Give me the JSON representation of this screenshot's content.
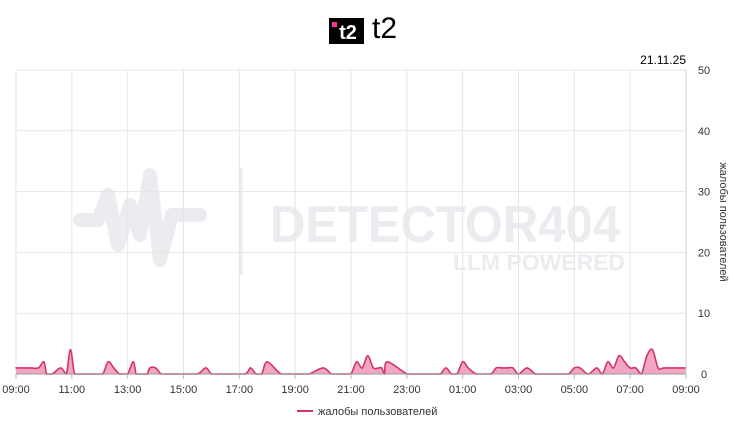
{
  "header": {
    "brand_name": "t2",
    "logo_text": "t2"
  },
  "date_label": "21.11.25",
  "watermark": {
    "line1": "DETECTOR404",
    "line2": "LLM POWERED"
  },
  "chart_data": {
    "type": "area",
    "title": "",
    "xlabel": "",
    "ylabel": "жалобы пользователей",
    "ylim": [
      0,
      50
    ],
    "yticks": [
      0,
      10,
      20,
      30,
      40,
      50
    ],
    "xlim": [
      0,
      24
    ],
    "xticks": [
      "09:00",
      "11:00",
      "13:00",
      "15:00",
      "17:00",
      "19:00",
      "21:00",
      "23:00",
      "01:00",
      "03:00",
      "05:00",
      "07:00",
      "09:00"
    ],
    "grid": true,
    "legend": {
      "position": "bottom",
      "entries": [
        "жалобы пользователей"
      ]
    },
    "series": [
      {
        "name": "жалобы пользователей",
        "color": "#d6336c",
        "fill": "#f3a6c4",
        "x": [
          0,
          0.5,
          0.8,
          1.0,
          1.1,
          1.3,
          1.6,
          1.8,
          1.95,
          2.1,
          2.3,
          2.5,
          2.8,
          3.1,
          3.3,
          3.5,
          3.7,
          3.8,
          4.0,
          4.2,
          4.3,
          4.4,
          4.6,
          4.7,
          4.8,
          5.0,
          5.2,
          5.4,
          5.6,
          5.8,
          6.0,
          6.5,
          6.8,
          7.0,
          7.2,
          7.5,
          8.2,
          8.4,
          8.6,
          8.8,
          9.0,
          9.5,
          10.0,
          10.2,
          10.5,
          11.0,
          11.3,
          11.5,
          11.8,
          12.0,
          12.2,
          12.4,
          12.6,
          12.8,
          13.0,
          13.1,
          13.2,
          13.3,
          14.0,
          14.2,
          14.4,
          14.6,
          14.8,
          15.0,
          15.2,
          15.4,
          15.6,
          15.8,
          16.0,
          16.2,
          16.5,
          17.0,
          17.2,
          17.4,
          17.6,
          17.8,
          18.0,
          18.3,
          18.6,
          18.8,
          19.0,
          19.3,
          19.6,
          19.8,
          20.0,
          20.2,
          20.5,
          20.8,
          21.0,
          21.2,
          21.4,
          21.6,
          21.8,
          22.0,
          22.2,
          22.4,
          22.6,
          22.8,
          23.0,
          23.2,
          23.5,
          24.0
        ],
        "values": [
          1,
          1,
          1,
          2,
          0,
          0,
          1,
          0,
          4,
          0,
          0,
          0,
          0,
          0,
          2,
          1,
          0,
          0,
          0,
          2,
          0,
          0,
          0,
          0,
          1,
          1,
          0,
          0,
          0,
          0,
          0,
          0,
          1,
          0,
          0,
          0,
          0,
          1,
          0,
          0,
          2,
          0,
          0,
          0,
          0,
          1,
          0,
          0,
          0,
          0,
          2,
          1,
          3,
          1,
          1,
          1,
          0,
          2,
          0,
          0,
          0,
          0,
          0,
          0,
          0,
          1,
          0,
          0,
          2,
          1,
          0,
          0,
          1,
          1,
          1,
          1,
          0,
          1,
          0,
          0,
          0,
          0,
          0,
          0,
          1,
          1,
          0,
          1,
          0,
          2,
          1,
          3,
          2,
          1,
          1,
          0,
          3,
          4,
          1,
          1,
          1,
          1
        ]
      }
    ]
  }
}
